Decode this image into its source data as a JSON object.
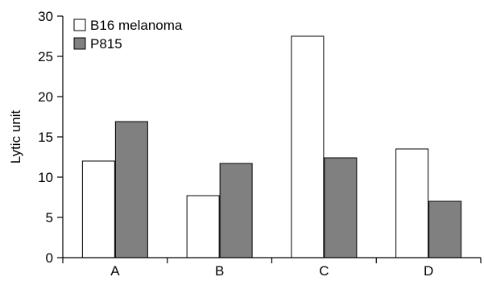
{
  "chart_data": {
    "type": "bar",
    "title": "",
    "xlabel": "",
    "ylabel": "Lytic unit",
    "ylim": [
      0,
      30
    ],
    "yticks": [
      0,
      5,
      10,
      15,
      20,
      25,
      30
    ],
    "grid": false,
    "legend_position": "top-left",
    "categories": [
      "A",
      "B",
      "C",
      "D"
    ],
    "series": [
      {
        "name": "B16 melanoma",
        "values": [
          12.0,
          7.7,
          27.5,
          13.5
        ],
        "color": "#ffffff"
      },
      {
        "name": "P815",
        "values": [
          16.9,
          11.7,
          12.4,
          7.0
        ],
        "color": "#808080"
      }
    ]
  }
}
